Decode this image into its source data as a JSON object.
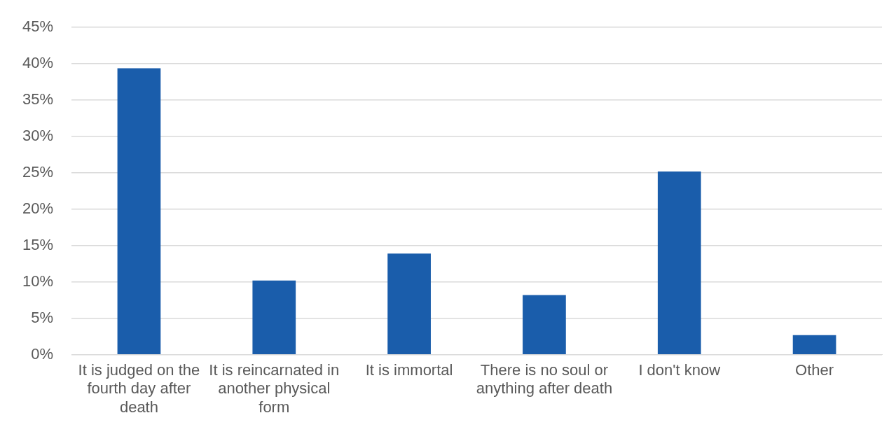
{
  "chart_data": {
    "type": "bar",
    "categories": [
      "It is judged on the fourth day after death",
      "It is reincarnated in another physical form",
      "It is immortal",
      "There is no soul or anything after death",
      "I don't know",
      "Other"
    ],
    "values": [
      39.4,
      10.2,
      13.9,
      8.2,
      25.2,
      2.7
    ],
    "color": "#1a5dab",
    "ylim": [
      0,
      45
    ],
    "yticks": [
      {
        "value": 0,
        "label": "0%"
      },
      {
        "value": 5,
        "label": "5%"
      },
      {
        "value": 10,
        "label": "10%"
      },
      {
        "value": 15,
        "label": "15%"
      },
      {
        "value": 20,
        "label": "20%"
      },
      {
        "value": 25,
        "label": "25%"
      },
      {
        "value": 30,
        "label": "30%"
      },
      {
        "value": 35,
        "label": "35%"
      },
      {
        "value": 40,
        "label": "40%"
      },
      {
        "value": 45,
        "label": "45%"
      }
    ],
    "grid": "y",
    "legend": false
  }
}
